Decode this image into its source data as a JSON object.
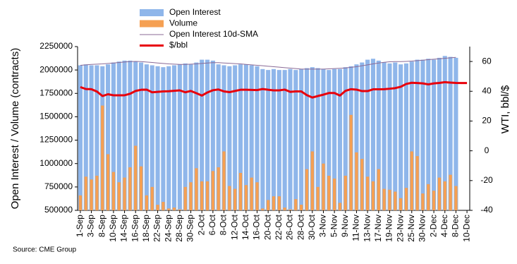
{
  "chart_data": {
    "type": "bar",
    "source": "Source: CME Group",
    "ylabel": "Open Interest / Volume (contracts)",
    "y2label": "WTI, bbl/$",
    "categories": [
      "1-Sep",
      null,
      "3-Sep",
      null,
      "8-Sep",
      null,
      "10-Sep",
      null,
      "14-Sep",
      null,
      "16-Sep",
      null,
      "18-Sep",
      null,
      "22-Sep",
      null,
      "24-Sep",
      null,
      "28-Sep",
      null,
      "30-Sep",
      null,
      "2-Oct",
      null,
      "6-Oct",
      null,
      "8-Oct",
      null,
      "12-Oct",
      null,
      "14-Oct",
      null,
      "16-Oct",
      null,
      "20-Oct",
      null,
      "22-Oct",
      null,
      "26-Oct",
      null,
      "28-Oct",
      null,
      "30-Oct",
      null,
      "3-Nov",
      null,
      "5-Nov",
      null,
      "9-Nov",
      null,
      "11-Nov",
      null,
      "13-Nov",
      null,
      "17-Nov",
      null,
      "19-Nov",
      null,
      "23-Nov",
      null,
      "25-Nov",
      null,
      "30-Nov",
      null,
      "2-Dec",
      null,
      "4-Dec",
      null,
      "8-Dec",
      null,
      "10-Dec"
    ],
    "series": [
      {
        "name": "Open Interest",
        "type": "bar",
        "color": "#8fb6ea",
        "values": [
          2050000,
          2060000,
          2050000,
          2050000,
          2040000,
          2060000,
          2080000,
          2090000,
          2100000,
          2100000,
          2090000,
          2080000,
          2060000,
          2050000,
          2040000,
          2030000,
          2040000,
          2050000,
          2060000,
          2070000,
          2060000,
          2080000,
          2110000,
          2110000,
          2100000,
          2060000,
          2050000,
          2040000,
          2050000,
          2060000,
          2060000,
          2050000,
          2040000,
          2010000,
          2000000,
          2010000,
          2000000,
          2000000,
          2010000,
          2000000,
          2010000,
          2020000,
          2030000,
          2020000,
          2010000,
          2000000,
          2010000,
          2010000,
          2030000,
          2040000,
          2060000,
          2080000,
          2110000,
          2120000,
          2100000,
          2080000,
          2070000,
          2080000,
          2060000,
          2070000,
          2090000,
          2110000,
          2110000,
          2120000,
          2110000,
          2130000,
          2150000,
          2140000,
          2130000,
          null,
          null
        ]
      },
      {
        "name": "Volume",
        "type": "bar",
        "color": "#f5a053",
        "values": [
          660000,
          860000,
          830000,
          870000,
          1620000,
          1100000,
          910000,
          800000,
          850000,
          960000,
          1190000,
          970000,
          660000,
          750000,
          560000,
          590000,
          520000,
          530000,
          510000,
          750000,
          800000,
          950000,
          810000,
          810000,
          920000,
          960000,
          1130000,
          760000,
          730000,
          900000,
          770000,
          850000,
          800000,
          520000,
          610000,
          650000,
          650000,
          530000,
          510000,
          620000,
          560000,
          940000,
          1130000,
          750000,
          1000000,
          870000,
          840000,
          580000,
          870000,
          1520000,
          1120000,
          1050000,
          860000,
          810000,
          940000,
          730000,
          720000,
          700000,
          630000,
          740000,
          1130000,
          1080000,
          680000,
          780000,
          710000,
          850000,
          810000,
          880000,
          760000,
          null,
          null
        ]
      },
      {
        "name": "Open Interest 10d-SMA",
        "type": "line",
        "color": "#8a6a96",
        "width": 1,
        "values": [
          2050000,
          2055000,
          2060000,
          2062000,
          2065000,
          2070000,
          2075000,
          2080000,
          2085000,
          2090000,
          2092000,
          2090000,
          2085000,
          2080000,
          2075000,
          2070000,
          2065000,
          2062000,
          2060000,
          2060000,
          2062000,
          2065000,
          2070000,
          2075000,
          2078000,
          2078000,
          2075000,
          2072000,
          2068000,
          2065000,
          2060000,
          2055000,
          2050000,
          2045000,
          2040000,
          2035000,
          2030000,
          2025000,
          2020000,
          2015000,
          2010000,
          2010000,
          2010000,
          2010000,
          2010000,
          2012000,
          2015000,
          2018000,
          2022000,
          2028000,
          2035000,
          2045000,
          2055000,
          2065000,
          2075000,
          2082000,
          2088000,
          2090000,
          2090000,
          2092000,
          2095000,
          2100000,
          2105000,
          2110000,
          2115000,
          2120000,
          2125000,
          2130000,
          2135000,
          null,
          null
        ]
      },
      {
        "name": "$/bbl",
        "type": "line",
        "axis": "y2",
        "color": "#e8000b",
        "width": 3,
        "values": [
          42.8,
          41.5,
          41.4,
          39.8,
          36.8,
          38.0,
          37.3,
          37.3,
          37.3,
          38.3,
          40.2,
          41.0,
          41.1,
          39.3,
          39.6,
          39.9,
          40.0,
          40.3,
          40.6,
          39.3,
          40.2,
          38.7,
          37.1,
          39.2,
          40.7,
          41.2,
          39.9,
          39.4,
          40.2,
          41.0,
          41.0,
          40.9,
          40.8,
          41.5,
          41.0,
          40.6,
          40.6,
          41.1,
          39.6,
          39.9,
          39.9,
          37.4,
          35.8,
          36.8,
          37.7,
          38.8,
          38.8,
          37.1,
          40.3,
          41.4,
          41.1,
          40.1,
          40.1,
          41.3,
          41.3,
          41.4,
          41.7,
          42.1,
          43.0,
          44.9,
          45.7,
          45.5,
          45.3,
          44.6,
          45.3,
          45.6,
          46.1,
          45.8,
          45.6,
          45.5,
          45.5
        ]
      }
    ],
    "ylim": [
      500000,
      2250000
    ],
    "yticks": [
      500000,
      750000,
      1000000,
      1250000,
      1500000,
      1750000,
      2000000,
      2250000
    ],
    "y2lim": [
      -40,
      70
    ],
    "y2ticks": [
      -40,
      -20,
      0,
      20,
      40,
      60
    ],
    "grid": false
  }
}
